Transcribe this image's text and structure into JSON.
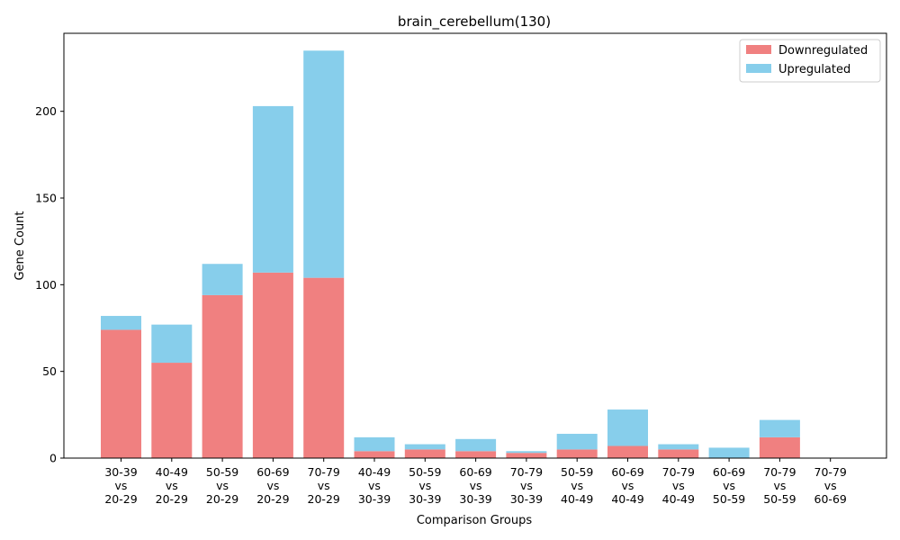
{
  "colors": {
    "downregulated": "#f08080",
    "upregulated": "#87ceeb"
  },
  "chart_data": {
    "type": "bar",
    "stacked": true,
    "title": "brain_cerebellum(130)",
    "xlabel": "Comparison Groups",
    "ylabel": "Gene Count",
    "ylim": [
      0,
      245
    ],
    "yticks": [
      0,
      50,
      100,
      150,
      200
    ],
    "legend_position": "top-right",
    "grid": false,
    "categories": [
      [
        "30-39",
        "vs",
        "20-29"
      ],
      [
        "40-49",
        "vs",
        "20-29"
      ],
      [
        "50-59",
        "vs",
        "20-29"
      ],
      [
        "60-69",
        "vs",
        "20-29"
      ],
      [
        "70-79",
        "vs",
        "20-29"
      ],
      [
        "40-49",
        "vs",
        "30-39"
      ],
      [
        "50-59",
        "vs",
        "30-39"
      ],
      [
        "60-69",
        "vs",
        "30-39"
      ],
      [
        "70-79",
        "vs",
        "30-39"
      ],
      [
        "50-59",
        "vs",
        "40-49"
      ],
      [
        "60-69",
        "vs",
        "40-49"
      ],
      [
        "70-79",
        "vs",
        "40-49"
      ],
      [
        "60-69",
        "vs",
        "50-59"
      ],
      [
        "70-79",
        "vs",
        "50-59"
      ],
      [
        "70-79",
        "vs",
        "60-69"
      ]
    ],
    "series": [
      {
        "name": "Downregulated",
        "color": "#f08080",
        "values": [
          74,
          55,
          94,
          107,
          104,
          4,
          5,
          4,
          3,
          5,
          7,
          5,
          0,
          12,
          0
        ]
      },
      {
        "name": "Upregulated",
        "color": "#87ceeb",
        "values": [
          8,
          22,
          18,
          96,
          131,
          8,
          3,
          7,
          1,
          9,
          21,
          3,
          6,
          10,
          0
        ]
      }
    ]
  }
}
